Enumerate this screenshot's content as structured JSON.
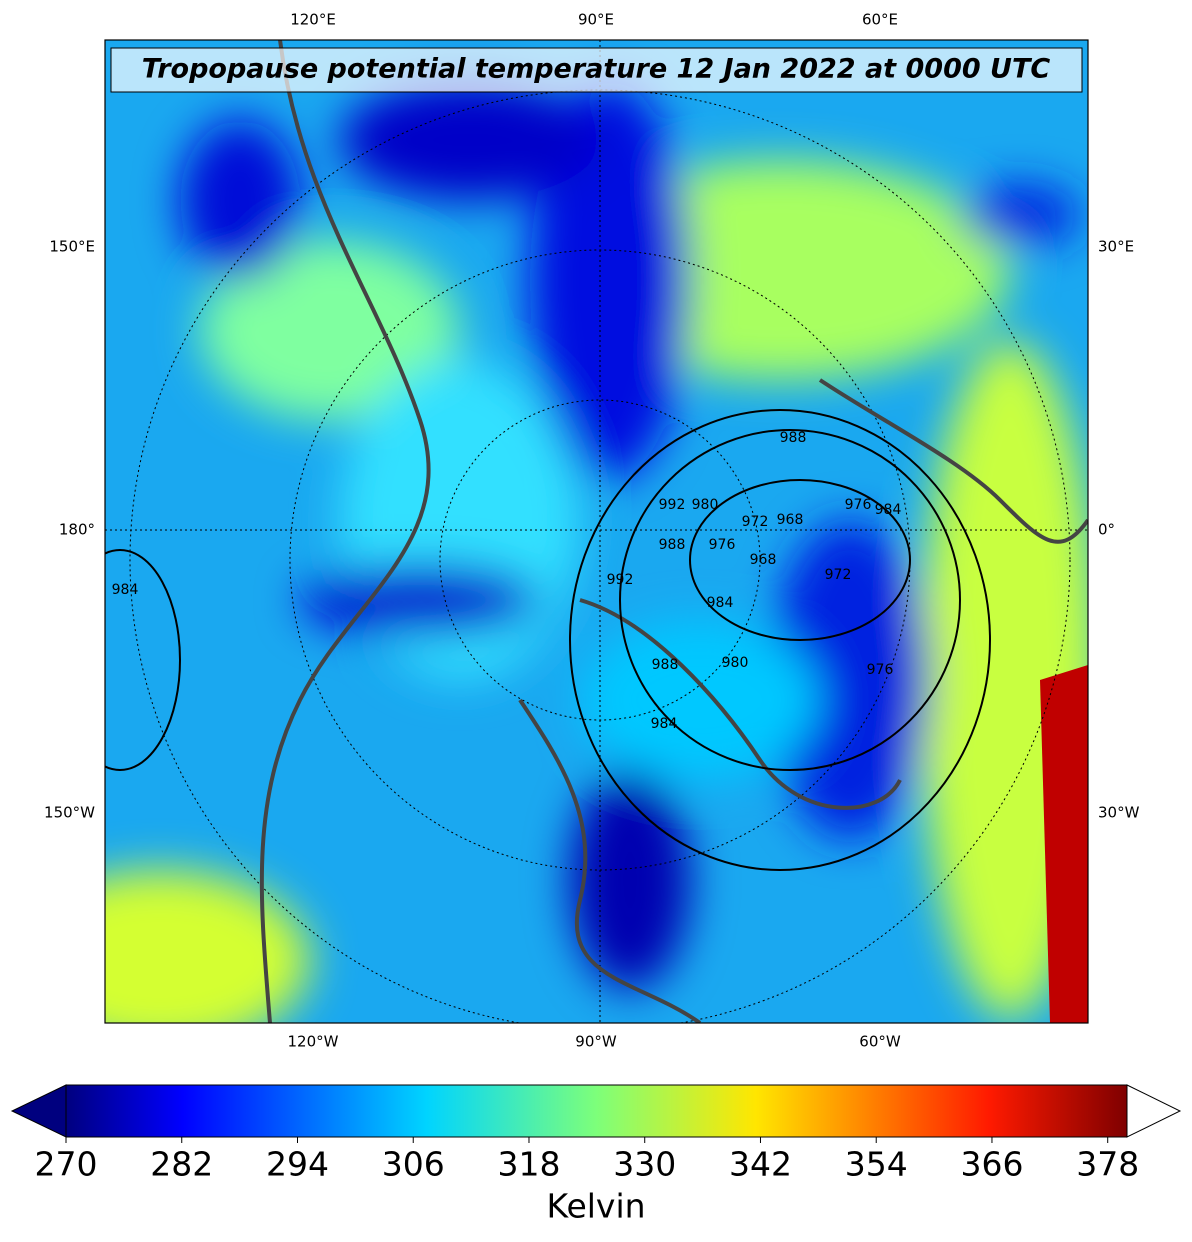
{
  "map": {
    "title": "Tropopause potential temperature 12 Jan 2022 at 0000 UTC",
    "top_labels": [
      "120°E",
      "90°E",
      "60°E"
    ],
    "left_labels": [
      "150°E",
      "180°",
      "150°W"
    ],
    "right_labels": [
      "30°E",
      "0°",
      "30°W"
    ],
    "bottom_labels": [
      "120°W",
      "90°W",
      "60°W"
    ],
    "contour_labels": [
      988,
      992,
      980,
      976,
      984,
      972,
      968,
      976,
      968,
      972,
      992,
      988,
      984,
      980,
      988,
      984,
      976,
      984
    ]
  },
  "colorbar": {
    "label": "Kelvin",
    "lim": [
      270,
      380
    ],
    "ticks": [
      270,
      282,
      294,
      306,
      318,
      330,
      342,
      354,
      366,
      378
    ],
    "cmap": "jet",
    "extend_low": true,
    "extend_high": true
  }
}
